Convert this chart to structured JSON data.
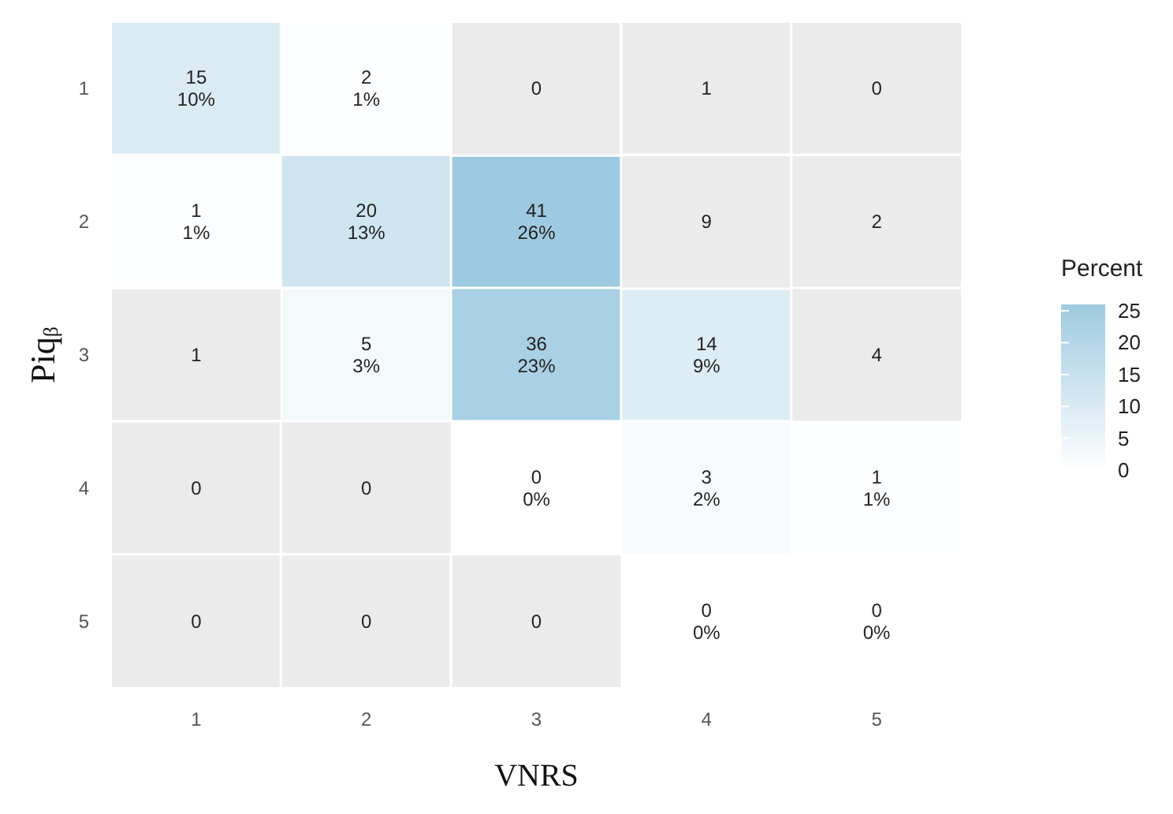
{
  "chart_data": {
    "type": "heatmap",
    "xlabel": "VNRS",
    "ylabel": "Piq$_{β}$",
    "clabel": "Percent",
    "categories": [
      "1",
      "2",
      "3",
      "4",
      "5"
    ],
    "y_categories": [
      "1",
      "2",
      "3",
      "4",
      "5"
    ],
    "cells": [
      [
        10,
        1,
        null,
        null,
        null
      ],
      [
        1,
        13,
        26,
        null,
        null
      ],
      [
        null,
        3,
        23,
        9,
        null
      ],
      [
        null,
        null,
        0,
        2,
        1
      ],
      [
        null,
        null,
        null,
        0,
        0
      ]
    ],
    "cell_labels": [
      [
        "15\n10%",
        "2\n1%",
        "0",
        "1",
        "0"
      ],
      [
        "1\n1%",
        "20\n13%",
        "41\n26%",
        "9",
        "2"
      ],
      [
        "1",
        "5\n3%",
        "36\n23%",
        "14\n9%",
        "4"
      ],
      [
        "0",
        "0",
        "0\n0%",
        "3\n2%",
        "1\n1%"
      ],
      [
        "0",
        "0",
        "0",
        "0\n0%",
        "0\n0%"
      ]
    ],
    "clim": [
      0,
      26
    ],
    "cticks": [
      0,
      5,
      10,
      15,
      20,
      25
    ]
  }
}
